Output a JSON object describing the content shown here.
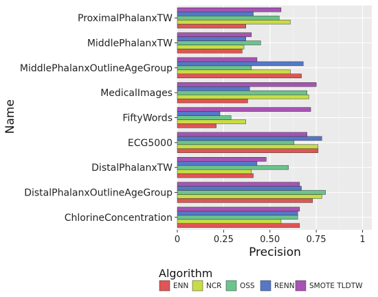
{
  "chart_data": {
    "type": "bar",
    "orientation": "horizontal",
    "title": "",
    "xlabel": "Precision",
    "ylabel": "Name",
    "xlim": [
      0,
      1.05
    ],
    "xticks": [
      0,
      0.25,
      0.5,
      0.75,
      1
    ],
    "xtick_labels": [
      "0",
      "0.25",
      "0.50",
      "0.75",
      "1"
    ],
    "grid": true,
    "legend_title": "Algorithm",
    "legend_position": "bottom",
    "categories": [
      "ProximalPhalanxTW",
      "MiddlePhalanxTW",
      "MiddlePhalanxOutlineAgeGroup",
      "MedicalImages",
      "FiftyWords",
      "ECG5000",
      "DistalPhalanxTW",
      "DistalPhalanxOutlineAgeGroup",
      "ChlorineConcentration"
    ],
    "series": [
      {
        "name": "ENN",
        "color": "#e05555",
        "values": [
          0.37,
          0.35,
          0.67,
          0.38,
          0.21,
          0.76,
          0.41,
          0.73,
          0.66
        ]
      },
      {
        "name": "NCR",
        "color": "#c8dd45",
        "values": [
          0.61,
          0.36,
          0.61,
          0.71,
          0.37,
          0.76,
          0.4,
          0.78,
          0.56
        ]
      },
      {
        "name": "OSS",
        "color": "#6bc48c",
        "values": [
          0.55,
          0.45,
          0.4,
          0.7,
          0.29,
          0.63,
          0.6,
          0.8,
          0.65
        ]
      },
      {
        "name": "RENN",
        "color": "#5578c8",
        "values": [
          0.41,
          0.37,
          0.68,
          0.39,
          0.23,
          0.78,
          0.43,
          0.67,
          0.65
        ]
      },
      {
        "name": "SMOTE TLDTW",
        "color": "#a754b4",
        "values": [
          0.56,
          0.4,
          0.43,
          0.75,
          0.72,
          0.7,
          0.48,
          0.66,
          0.66
        ]
      }
    ]
  }
}
